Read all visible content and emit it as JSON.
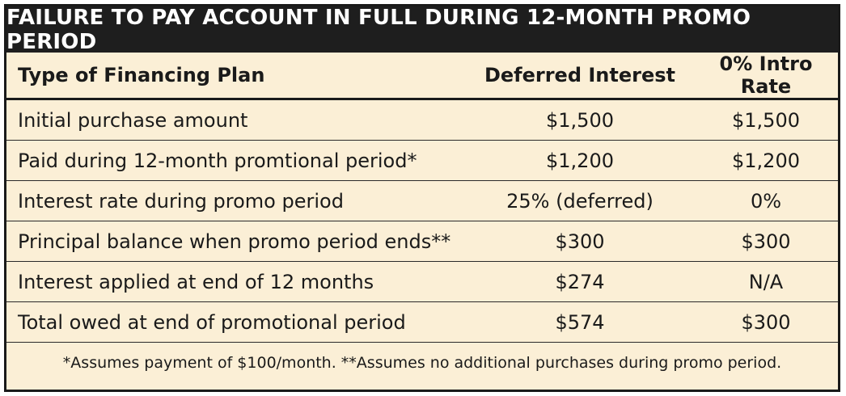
{
  "title": "FAILURE TO PAY ACCOUNT IN FULL DURING 12-MONTH PROMO PERIOD",
  "headers": [
    "Type of Financing Plan",
    "Deferred Interest",
    "0% Intro Rate"
  ],
  "rows": [
    {
      "label": "Initial purchase amount",
      "deferred": "$1,500",
      "intro": "$1,500"
    },
    {
      "label": "Paid during 12-month promtional period*",
      "deferred": "$1,200",
      "intro": "$1,200"
    },
    {
      "label": "Interest rate during promo period",
      "deferred": "25% (deferred)",
      "intro": "0%"
    },
    {
      "label": "Principal balance when promo period ends**",
      "deferred": "$300",
      "intro": "$300"
    },
    {
      "label": "Interest applied at end of 12 months",
      "deferred": "$274",
      "intro": "N/A"
    },
    {
      "label": "Total owed at end of promotional period",
      "deferred": "$574",
      "intro": "$300"
    }
  ],
  "footnote": "*Assumes payment of $100/month. **Assumes no additional purchases during promo period."
}
